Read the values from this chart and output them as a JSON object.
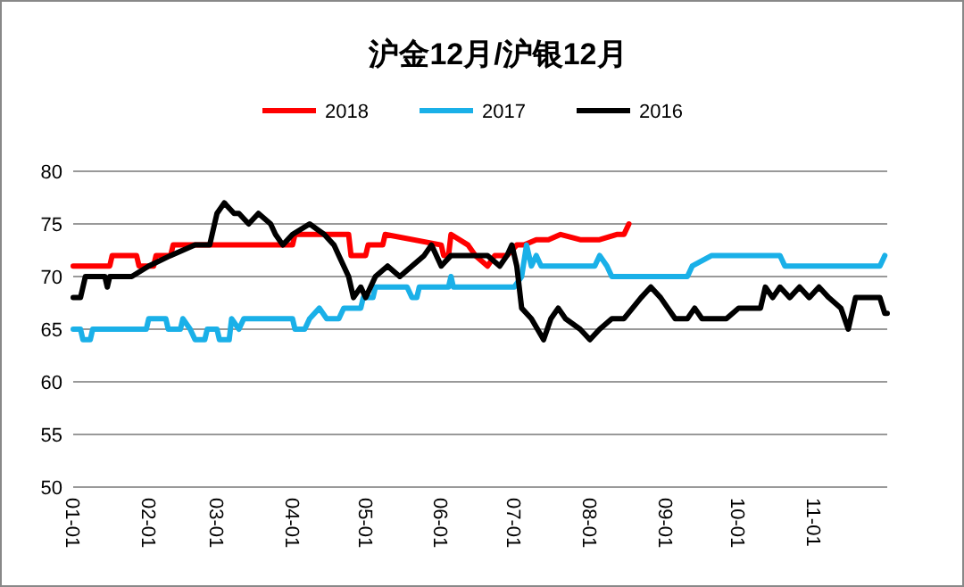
{
  "chart_data": {
    "type": "line",
    "title": "沪金12月/沪银12月",
    "legend": "top",
    "grid": "y",
    "line_style": "solid",
    "marker": "none",
    "xlim": [
      "--01-01",
      "--12-01"
    ],
    "xticks": [
      {
        "value": "--01-01",
        "label": "01-01"
      },
      {
        "value": "--02-01",
        "label": "02-01"
      },
      {
        "value": "--03-01",
        "label": "03-01"
      },
      {
        "value": "--04-01",
        "label": "04-01"
      },
      {
        "value": "--05-01",
        "label": "05-01"
      },
      {
        "value": "--06-01",
        "label": "06-01"
      },
      {
        "value": "--07-01",
        "label": "07-01"
      },
      {
        "value": "--08-01",
        "label": "08-01"
      },
      {
        "value": "--09-01",
        "label": "09-01"
      },
      {
        "value": "--10-01",
        "label": "10-01"
      },
      {
        "value": "--11-01",
        "label": "11-01"
      }
    ],
    "ylim": [
      50,
      80
    ],
    "yticks": [
      50,
      55,
      60,
      65,
      70,
      75,
      80
    ],
    "series": [
      {
        "name": "2018",
        "color": "#ff0000",
        "x": [
          "--01-01",
          "--01-16",
          "--01-17",
          "--01-27",
          "--01-28",
          "--02-03",
          "--02-04",
          "--02-10",
          "--02-11",
          "--04-01",
          "--04-02",
          "--04-24",
          "--04-25",
          "--05-01",
          "--05-02",
          "--05-08",
          "--05-09",
          "--06-01",
          "--06-02",
          "--06-04",
          "--06-05",
          "--06-12",
          "--06-15",
          "--06-20",
          "--06-23",
          "--06-28",
          "--07-02",
          "--07-05",
          "--07-10",
          "--07-15",
          "--07-20",
          "--07-28",
          "--08-05",
          "--08-12",
          "--08-15",
          "--08-17"
        ],
        "values": [
          71,
          71,
          72,
          72,
          71,
          71,
          72,
          72,
          73,
          73,
          74,
          74,
          72,
          72,
          73,
          73,
          74,
          73,
          72,
          72,
          74,
          73,
          72,
          71,
          72,
          72,
          73,
          73,
          73.5,
          73.5,
          74,
          73.5,
          73.5,
          74,
          74,
          75
        ]
      },
      {
        "name": "2017",
        "color": "#1ab0e8",
        "x": [
          "--01-01",
          "--01-04",
          "--01-05",
          "--01-08",
          "--01-09",
          "--01-31",
          "--02-01",
          "--02-08",
          "--02-09",
          "--02-14",
          "--02-15",
          "--02-18",
          "--02-20",
          "--02-24",
          "--02-25",
          "--03-01",
          "--03-02",
          "--03-06",
          "--03-07",
          "--03-10",
          "--03-12",
          "--04-01",
          "--04-02",
          "--04-06",
          "--04-08",
          "--04-12",
          "--04-15",
          "--04-20",
          "--04-22",
          "--04-29",
          "--04-30",
          "--05-04",
          "--05-05",
          "--05-18",
          "--05-20",
          "--05-22",
          "--05-23",
          "--06-04",
          "--06-05",
          "--06-06",
          "--07-01",
          "--07-04",
          "--07-06",
          "--07-08",
          "--07-10",
          "--07-12",
          "--07-14",
          "--08-03",
          "--08-05",
          "--08-08",
          "--08-10",
          "--08-14",
          "--09-10",
          "--09-12",
          "--09-20",
          "--10-18",
          "--10-20",
          "--11-28",
          "--11-30"
        ],
        "values": [
          65,
          65,
          64,
          64,
          65,
          65,
          66,
          66,
          65,
          65,
          66,
          65,
          64,
          64,
          65,
          65,
          64,
          64,
          66,
          65,
          66,
          66,
          65,
          65,
          66,
          67,
          66,
          66,
          67,
          67,
          68,
          68,
          69,
          69,
          68,
          68,
          69,
          69,
          70,
          69,
          69,
          70,
          73,
          71,
          72,
          71,
          71,
          71,
          72,
          71,
          70,
          70,
          70,
          71,
          72,
          72,
          71,
          71,
          72
        ]
      },
      {
        "name": "2016",
        "color": "#000000",
        "x": [
          "--01-01",
          "--01-04",
          "--01-06",
          "--01-14",
          "--01-15",
          "--01-16",
          "--01-25",
          "--02-01",
          "--02-10",
          "--02-20",
          "--02-26",
          "--03-01",
          "--03-04",
          "--03-08",
          "--03-10",
          "--03-14",
          "--03-18",
          "--03-23",
          "--03-25",
          "--03-28",
          "--04-01",
          "--04-08",
          "--04-14",
          "--04-18",
          "--04-20",
          "--04-24",
          "--04-26",
          "--04-29",
          "--05-01",
          "--05-05",
          "--05-10",
          "--05-15",
          "--05-20",
          "--05-25",
          "--05-28",
          "--06-01",
          "--06-05",
          "--06-20",
          "--06-25",
          "--06-28",
          "--06-30",
          "--07-02",
          "--07-04",
          "--07-08",
          "--07-13",
          "--07-16",
          "--07-19",
          "--07-22",
          "--07-28",
          "--08-01",
          "--08-05",
          "--08-10",
          "--08-15",
          "--08-22",
          "--08-26",
          "--08-30",
          "--09-05",
          "--09-10",
          "--09-13",
          "--09-16",
          "--09-26",
          "--10-01",
          "--10-10",
          "--10-12",
          "--10-15",
          "--10-18",
          "--10-22",
          "--10-26",
          "--10-30",
          "--11-03",
          "--11-07",
          "--11-12",
          "--11-15",
          "--11-18",
          "--11-28",
          "--11-30",
          "--12-01"
        ],
        "values": [
          68,
          68,
          70,
          70,
          69,
          70,
          70,
          71,
          72,
          73,
          73,
          76,
          77,
          76,
          76,
          75,
          76,
          75,
          74,
          73,
          74,
          75,
          74,
          73,
          72,
          70,
          68,
          69,
          68,
          70,
          71,
          70,
          71,
          72,
          73,
          71,
          72,
          72,
          71,
          72,
          73,
          71,
          67,
          66,
          64,
          66,
          67,
          66,
          65,
          64,
          65,
          66,
          66,
          68,
          69,
          68,
          66,
          66,
          67,
          66,
          66,
          67,
          67,
          69,
          68,
          69,
          68,
          69,
          68,
          69,
          68,
          67,
          65,
          68,
          68,
          66.5,
          66.5
        ]
      }
    ]
  }
}
